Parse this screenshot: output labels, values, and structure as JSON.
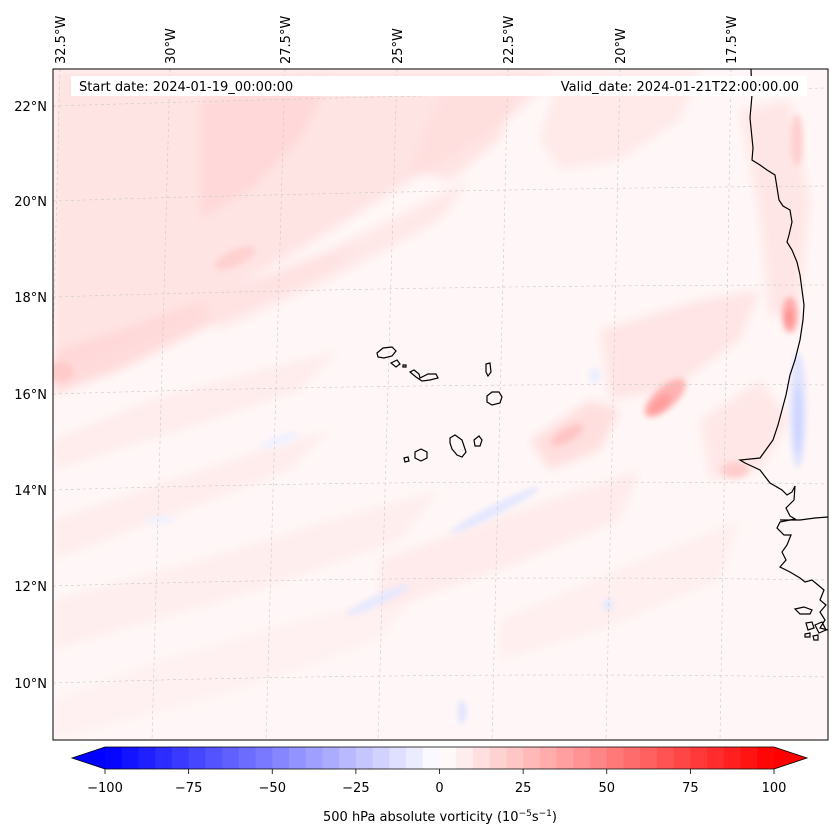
{
  "map": {
    "start_date_label": "Start date: 2024-01-19_00:00:00",
    "valid_date_label": "Valid_date: 2024-01-21T22:00:00.00",
    "longitude_labels": [
      "32.5°W",
      "30°W",
      "27.5°W",
      "25°W",
      "22.5°W",
      "20°W",
      "17.5°W"
    ],
    "latitude_labels": [
      "22°N",
      "20°N",
      "18°N",
      "16°N",
      "14°N",
      "12°N",
      "10°N"
    ],
    "field": "500 hPa absolute vorticity",
    "coastline_color": "#000000",
    "gridline_color": "#c8c8c8"
  },
  "colorbar": {
    "label_prefix": "500 hPa absolute vorticity (10",
    "label_exp1": "−5",
    "label_mid": "s",
    "label_exp2": "−1",
    "label_suffix": ")",
    "tick_labels": [
      "−100",
      "−75",
      "−50",
      "−25",
      "0",
      "25",
      "50",
      "75",
      "100"
    ],
    "vmin": -100,
    "vmax": 100,
    "n_bins": 40,
    "low_color": "#0000ff",
    "mid_color": "#ffffff",
    "high_color": "#ff0000"
  }
}
